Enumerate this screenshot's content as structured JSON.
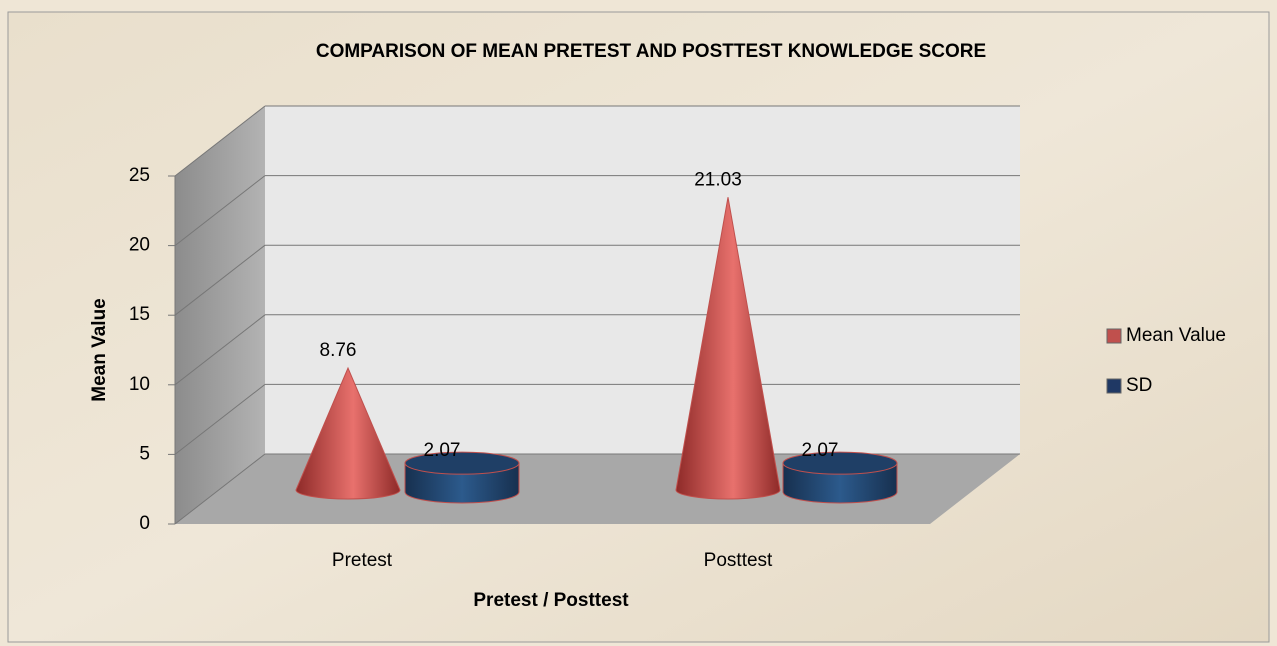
{
  "chart_data": {
    "type": "bar",
    "title": "COMPARISON OF MEAN PRETEST AND POSTTEST KNOWLEDGE SCORE",
    "x_label": "Pretest / Posttest",
    "y_label": "Mean Value",
    "categories": [
      "Pretest",
      "Posttest"
    ],
    "series": [
      {
        "name": "Mean Value",
        "color": "#c0504d",
        "values": [
          8.76,
          21.03
        ]
      },
      {
        "name": "SD",
        "color": "#1f3864",
        "values": [
          2.07,
          2.07
        ]
      }
    ],
    "ylim": [
      0,
      25
    ],
    "yticks": [
      0,
      5,
      10,
      15,
      20,
      25
    ],
    "grid": true,
    "legend": "right"
  }
}
